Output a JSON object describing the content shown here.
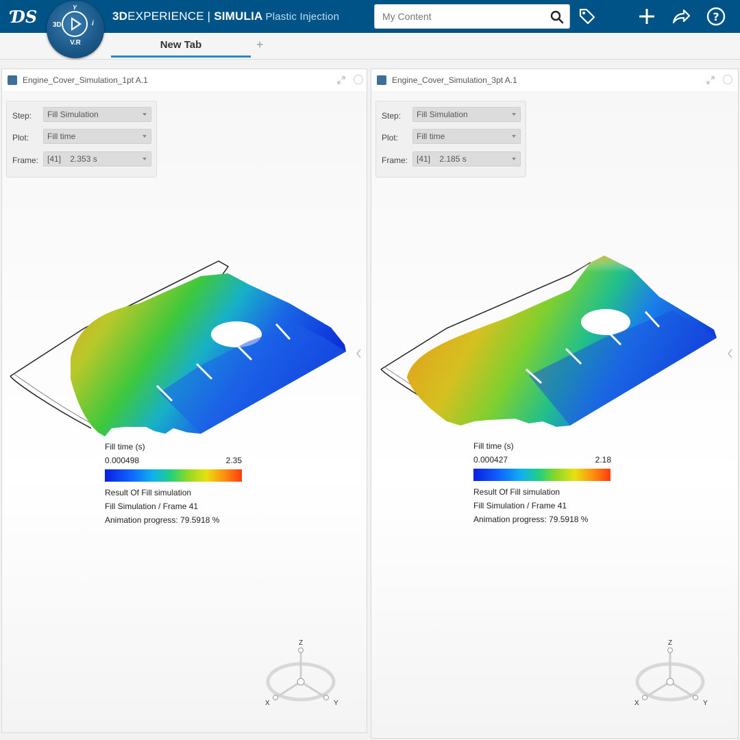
{
  "topbar": {
    "brand_3d": "3D",
    "brand_experience": "EXPERIENCE",
    "brand_separator": " | ",
    "brand_simulia": "SIMULIA",
    "app_name": "Plastic Injection",
    "search_placeholder": "My Content",
    "compass": {
      "label_3d": "3D",
      "label_top": "Y",
      "label_right": "i",
      "label_bottom": "V.R"
    },
    "icons": [
      "tag-icon",
      "plus-icon",
      "share-icon",
      "help-icon"
    ],
    "bg_color": "#005386"
  },
  "tabs": {
    "active_label": "New Tab",
    "add_label": "+"
  },
  "panels": [
    {
      "title": "Engine_Cover_Simulation_1pt A.1",
      "step_label": "Step:",
      "step_value": "Fill Simulation",
      "plot_label": "Plot:",
      "plot_value": "Fill time",
      "frame_label": "Frame:",
      "frame_value": "[41]    2.353 s",
      "legend": {
        "title": "Fill time (s)",
        "min": "0.000498",
        "max": "2.35",
        "result": "Result Of Fill simulation",
        "frame_info": "Fill Simulation / Frame 41",
        "progress": "Animation progress: 79.5918 %"
      },
      "axes": {
        "z": "Z",
        "x": "X",
        "y": "Y"
      }
    },
    {
      "title": "Engine_Cover_Simulation_3pt A.1",
      "step_label": "Step:",
      "step_value": "Fill Simulation",
      "plot_label": "Plot:",
      "plot_value": "Fill time",
      "frame_label": "Frame:",
      "frame_value": "[41]    2.185 s",
      "legend": {
        "title": "Fill time (s)",
        "min": "0.000427",
        "max": "2.18",
        "result": "Result Of Fill simulation",
        "frame_info": "Fill Simulation / Frame 41",
        "progress": "Animation progress: 79.5918 %"
      },
      "axes": {
        "z": "Z",
        "x": "X",
        "y": "Y"
      }
    }
  ]
}
